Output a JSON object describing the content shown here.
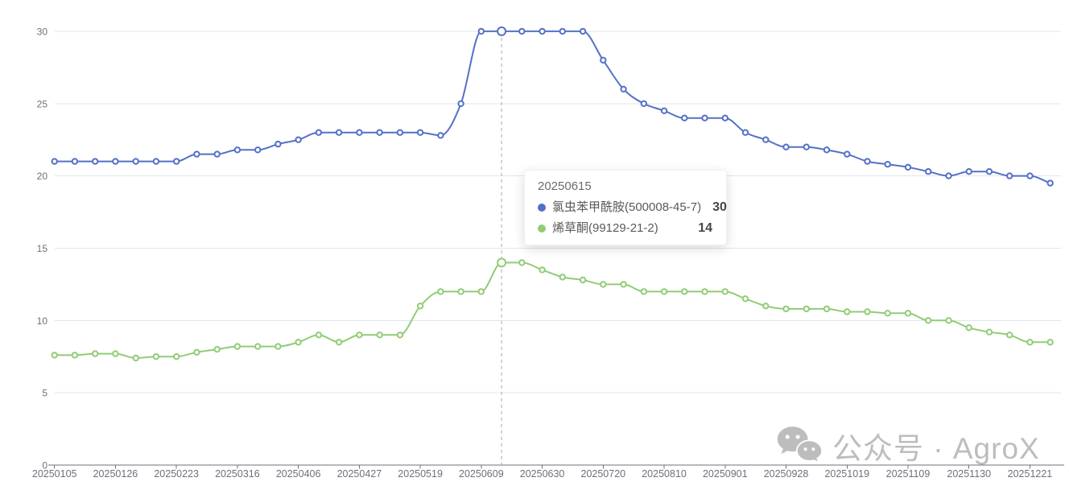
{
  "chart_data": {
    "type": "line",
    "smooth": true,
    "grid": true,
    "ylim": [
      0,
      30
    ],
    "y_ticks": [
      0,
      5,
      10,
      15,
      20,
      25,
      30
    ],
    "x_tick_step": 3,
    "x_tick_labels": [
      "20250105",
      "20250126",
      "20250223",
      "20250316",
      "20250406",
      "20250427",
      "20250519",
      "20250609",
      "20250630",
      "20250720",
      "20250810",
      "20250901",
      "20250928",
      "20251019",
      "20251109",
      "20251130",
      "20251221"
    ],
    "highlight_index": 22,
    "highlight_date": "20250615",
    "series": [
      {
        "name": "氯虫苯甲酰胺(500008-45-7)",
        "color": "#5470c6",
        "values": [
          21,
          21,
          21,
          21,
          21,
          21,
          21,
          21.5,
          21.5,
          21.8,
          21.8,
          22.2,
          22.5,
          23,
          23,
          23,
          23,
          23,
          23,
          22.8,
          25,
          30,
          30,
          30,
          30,
          30,
          30,
          28,
          26,
          25,
          24.5,
          24,
          24,
          24,
          23,
          22.5,
          22,
          22,
          21.8,
          21.5,
          21,
          20.8,
          20.6,
          20.3,
          20,
          20.3,
          20.3,
          20,
          20,
          19.5
        ]
      },
      {
        "name": "烯草酮(99129-21-2)",
        "color": "#91cc75",
        "values": [
          7.6,
          7.6,
          7.7,
          7.7,
          7.4,
          7.5,
          7.5,
          7.8,
          8,
          8.2,
          8.2,
          8.2,
          8.5,
          9,
          8.5,
          9,
          9,
          9,
          11,
          12,
          12,
          12,
          14,
          14,
          13.5,
          13,
          12.8,
          12.5,
          12.5,
          12,
          12,
          12,
          12,
          12,
          11.5,
          11,
          10.8,
          10.8,
          10.8,
          10.6,
          10.6,
          10.5,
          10.5,
          10,
          10,
          9.5,
          9.2,
          9,
          8.5,
          8.5
        ]
      }
    ],
    "colors": {
      "axis_label": "#6E7079",
      "axis_line": "#6E7079",
      "grid": "#E0E6F1",
      "pointer": "#b6b6b6",
      "marker_fill": "#ffffff"
    }
  },
  "tooltip": {
    "date": "20250615",
    "rows": [
      {
        "label": "氯虫苯甲酰胺(500008-45-7)",
        "value": "30",
        "color": "#5470c6"
      },
      {
        "label": "烯草酮(99129-21-2)",
        "value": "14",
        "color": "#91cc75"
      }
    ]
  },
  "watermark": {
    "icon": "wechat-icon",
    "text": "公众号 · AgroX",
    "color": "#bdbdbd"
  }
}
